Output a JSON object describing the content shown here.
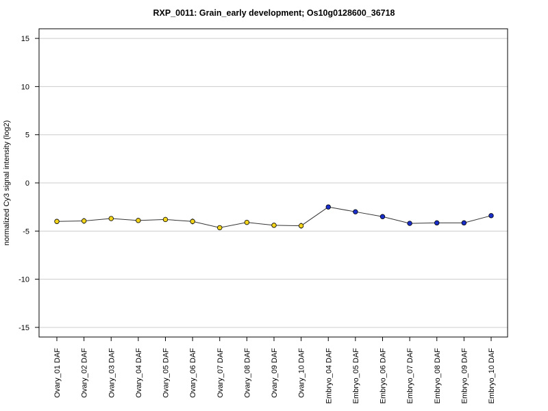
{
  "chart_data": {
    "type": "line",
    "title": "RXP_0011: Grain_early development; Os10g0128600_36718",
    "xlabel": "",
    "ylabel": "normalized Cy3 signal intensity (log2)",
    "ylim": [
      -16,
      16
    ],
    "yticks": [
      -15,
      -10,
      -5,
      0,
      5,
      10,
      15
    ],
    "ytick_labels": [
      "-15",
      "-10",
      "-5",
      "0",
      "5",
      "10",
      "15"
    ],
    "grid": "horizontal",
    "categories": [
      "Ovary_01 DAF",
      "Ovary_02 DAF",
      "Ovary_03 DAF",
      "Ovary_04 DAF",
      "Ovary_05 DAF",
      "Ovary_06 DAF",
      "Ovary_07 DAF",
      "Ovary_08 DAF",
      "Ovary_09 DAF",
      "Ovary_10 DAF",
      "Embryo_04 DAF",
      "Embryo_05 DAF",
      "Embryo_06 DAF",
      "Embryo_07 DAF",
      "Embryo_08 DAF",
      "Embryo_09 DAF",
      "Embryo_10 DAF"
    ],
    "values": [
      -4.0,
      -3.95,
      -3.7,
      -3.9,
      -3.8,
      -4.0,
      -4.65,
      -4.1,
      -4.4,
      -4.45,
      -2.5,
      -3.0,
      -3.5,
      -4.2,
      -4.15,
      -4.15,
      -3.4
    ],
    "errors": [
      0.25,
      0.3,
      0.2,
      0.2,
      0.25,
      0.3,
      0.2,
      0.2,
      0.15,
      0.3,
      0.1,
      0.1,
      0.1,
      0.1,
      0.1,
      0.1,
      0.1
    ],
    "point_colors": [
      "#f2d41c",
      "#f2d41c",
      "#f2d41c",
      "#f2d41c",
      "#f2d41c",
      "#f2d41c",
      "#f2d41c",
      "#f2d41c",
      "#f2d41c",
      "#f2d41c",
      "#1a2ec8",
      "#1a2ec8",
      "#1a2ec8",
      "#1a2ec8",
      "#1a2ec8",
      "#1a2ec8",
      "#1a2ec8"
    ],
    "line_color": "#333333",
    "grid_color": "#cccccc"
  }
}
